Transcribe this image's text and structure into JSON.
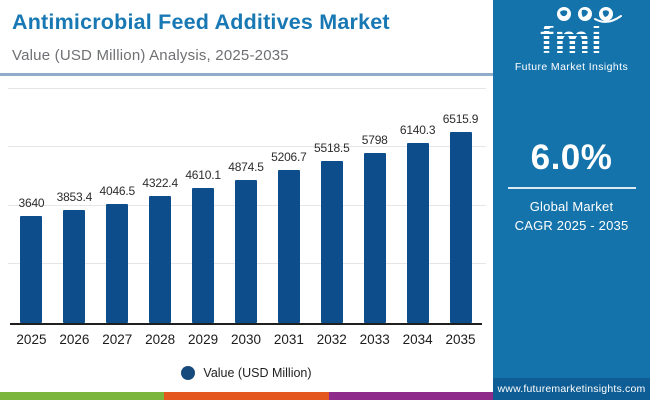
{
  "header": {
    "title": "Antimicrobial Feed Additives Market",
    "subtitle": "Value (USD Million) Analysis, 2025-2035"
  },
  "logo": {
    "text": "fmi",
    "tagline": "Future Market Insights"
  },
  "side_panel": {
    "cagr_value": "6.0%",
    "cagr_label_line1": "Global Market",
    "cagr_label_line2": "CAGR 2025 - 2035",
    "website": "www.futuremarketinsights.com",
    "panel_color": "#1573ab"
  },
  "chart_data": {
    "type": "bar",
    "title": "Antimicrobial Feed Additives Market",
    "subtitle": "Value (USD Million) Analysis, 2025-2035",
    "categories": [
      "2025",
      "2026",
      "2027",
      "2028",
      "2029",
      "2030",
      "2031",
      "2032",
      "2033",
      "2034",
      "2035"
    ],
    "values": [
      3640,
      3853.4,
      4046.5,
      4322.4,
      4610.1,
      4874.5,
      5206.7,
      5518.5,
      5798,
      6140.3,
      6515.9
    ],
    "value_labels": [
      "3640",
      "3853.4",
      "4046.5",
      "4322.4",
      "4610.1",
      "4874.5",
      "5206.7",
      "5518.5",
      "5798",
      "6140.3",
      "6515.9"
    ],
    "legend": "Value (USD Million)",
    "legend_position": "bottom",
    "xlabel": "",
    "ylabel": "",
    "ylim": [
      0,
      8000
    ],
    "gridline_step": 2000,
    "grid": "horizontal",
    "bar_color": "#0e4d8b"
  },
  "footer_stripes": [
    "#7cb53e",
    "#e4571f",
    "#8e2a8a"
  ]
}
